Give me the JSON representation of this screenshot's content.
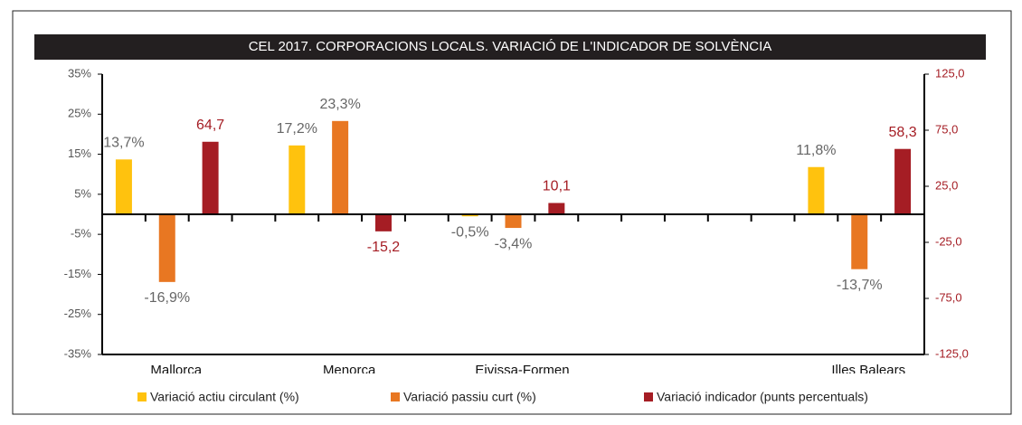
{
  "chart_data": {
    "type": "bar",
    "title": "CEL 2017. CORPORACIONS LOCALS. VARIACIÓ DE L'INDICADOR DE SOLVÈNCIA",
    "categories": [
      "Mallorca",
      "Menorca",
      "Eivissa-Formen",
      null,
      "Illes Balears"
    ],
    "series": [
      {
        "name": "Variació actiu circulant (%)",
        "color": "#ffc20e",
        "axis": "y",
        "values": [
          13.7,
          17.2,
          -0.5,
          null,
          11.8
        ],
        "value_labels": [
          "13,7%",
          "17,2%",
          "-0,5%",
          null,
          "11,8%"
        ]
      },
      {
        "name": "Variació passiu curt (%)",
        "color": "#e87722",
        "axis": "y",
        "values": [
          -16.9,
          23.3,
          -3.4,
          null,
          -13.7
        ],
        "value_labels": [
          "-16,9%",
          "23,3%",
          "-3,4%",
          null,
          "-13,7%"
        ]
      },
      {
        "name": "Variació indicador (punts percentuals)",
        "color": "#a51d24",
        "axis": "y2",
        "values": [
          64.7,
          -15.2,
          10.1,
          null,
          58.3
        ],
        "value_labels": [
          "64,7",
          "-15,2",
          "10,1",
          null,
          "58,3"
        ]
      }
    ],
    "ylim": [
      -35,
      35
    ],
    "yticks": [
      {
        "value": 35,
        "label": "35%"
      },
      {
        "value": 25,
        "label": "25%"
      },
      {
        "value": 15,
        "label": "15%"
      },
      {
        "value": 5,
        "label": "5%"
      },
      {
        "value": -5,
        "label": "-5%"
      },
      {
        "value": -15,
        "label": "-15%"
      },
      {
        "value": -25,
        "label": "-25%"
      },
      {
        "value": -35,
        "label": "-35%"
      }
    ],
    "y2lim": [
      -125,
      125
    ],
    "y2ticks": [
      {
        "value": 125,
        "label": "125,0"
      },
      {
        "value": 75,
        "label": "75,0"
      },
      {
        "value": 25,
        "label": "25,0"
      },
      {
        "value": -25,
        "label": "-25,0"
      },
      {
        "value": -75,
        "label": "-75,0"
      },
      {
        "value": -125,
        "label": "-125,0"
      }
    ],
    "legend": "bottom"
  }
}
